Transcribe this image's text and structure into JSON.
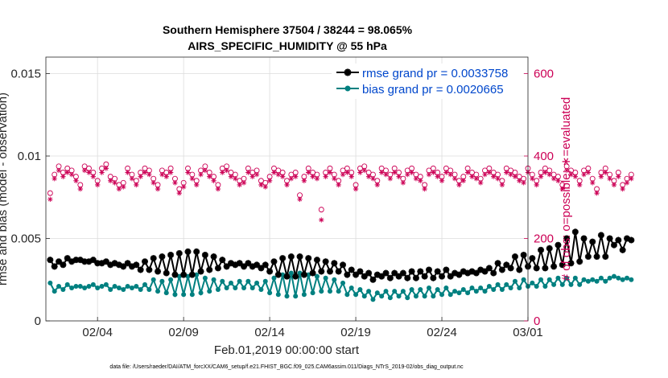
{
  "chart_data": {
    "type": "line",
    "title": "Southern Hemisphere 37504 / 38244 = 98.065%",
    "subtitle": "AIRS_SPECIFIC_HUMIDITY @ 55 hPa",
    "xlabel": "Feb.01,2019 00:00:00 start",
    "ylabel_left": "rmse and bias (model - observation)",
    "ylabel_right": "# of obs: o=possible; ∗=evaluated",
    "footer": "data file: /Users/raeder/DAI/ATM_forcXX/CAM6_setup/f.e21.FHIST_BGC.f09_025.CAM6assim.011/Diags_NTrS_2019-02/obs_diag_output.nc",
    "x_ticks": [
      {
        "label": "02/04",
        "value": 4
      },
      {
        "label": "02/09",
        "value": 9
      },
      {
        "label": "02/14",
        "value": 14
      },
      {
        "label": "02/19",
        "value": 19
      },
      {
        "label": "02/24",
        "value": 24
      },
      {
        "label": "03/01",
        "value": 29
      }
    ],
    "xlim": [
      1,
      29
    ],
    "ylim_left": [
      0,
      0.016
    ],
    "ylim_right": [
      0,
      640
    ],
    "y_ticks_left": [
      {
        "label": "0",
        "value": 0
      },
      {
        "label": "0.005",
        "value": 0.005
      },
      {
        "label": "0.01",
        "value": 0.01
      },
      {
        "label": "0.015",
        "value": 0.015
      }
    ],
    "y_ticks_right": [
      {
        "label": "0",
        "value": 0
      },
      {
        "label": "200",
        "value": 200
      },
      {
        "label": "400",
        "value": 400
      },
      {
        "label": "600",
        "value": 600
      }
    ],
    "grid": true,
    "legend_position": "top-right",
    "series_style": {
      "rmse": {
        "color": "#000000",
        "marker": "star"
      },
      "bias": {
        "color": "#008080",
        "marker": "circle"
      },
      "possible": {
        "color": "#cc0055",
        "marker": "open-circle"
      },
      "evaluated": {
        "color": "#cc0055",
        "marker": "asterisk"
      }
    },
    "legend": [
      {
        "label": "rmse grand pr = 0.0033758",
        "series": "rmse"
      },
      {
        "label": "bias grand pr = 0.0020665",
        "series": "bias"
      }
    ],
    "series": [
      {
        "name": "rmse",
        "x_start": 1.25,
        "x_step": 0.25,
        "values": [
          0.0037,
          0.0033,
          0.0036,
          0.0034,
          0.0038,
          0.0036,
          0.0037,
          0.0037,
          0.0036,
          0.0036,
          0.0037,
          0.0035,
          0.0035,
          0.0036,
          0.0034,
          0.0035,
          0.0034,
          0.0033,
          0.0035,
          0.0033,
          0.0034,
          0.0031,
          0.0036,
          0.0031,
          0.0038,
          0.003,
          0.0039,
          0.0029,
          0.004,
          0.0028,
          0.0041,
          0.0028,
          0.0042,
          0.0028,
          0.0042,
          0.003,
          0.004,
          0.0031,
          0.0039,
          0.0032,
          0.0037,
          0.0033,
          0.0035,
          0.0034,
          0.0035,
          0.0033,
          0.0035,
          0.0033,
          0.0034,
          0.0032,
          0.0034,
          0.003,
          0.0036,
          0.0028,
          0.0038,
          0.0027,
          0.0039,
          0.0027,
          0.0039,
          0.0028,
          0.0038,
          0.0029,
          0.0037,
          0.003,
          0.0036,
          0.003,
          0.0035,
          0.003,
          0.0034,
          0.0028,
          0.0031,
          0.0028,
          0.003,
          0.0027,
          0.0029,
          0.0025,
          0.0028,
          0.0027,
          0.0029,
          0.0026,
          0.0029,
          0.0027,
          0.0029,
          0.0026,
          0.003,
          0.0026,
          0.003,
          0.0027,
          0.0031,
          0.0026,
          0.003,
          0.0027,
          0.0031,
          0.0027,
          0.0029,
          0.0028,
          0.003,
          0.0029,
          0.003,
          0.0029,
          0.0031,
          0.003,
          0.0032,
          0.0029,
          0.0035,
          0.0031,
          0.0034,
          0.0032,
          0.0039,
          0.0031,
          0.004,
          0.0033,
          0.0038,
          0.0032,
          0.0043,
          0.0032,
          0.0044,
          0.0033,
          0.0046,
          0.0034,
          0.005,
          0.0035,
          0.0054,
          0.0036,
          0.005,
          0.0039,
          0.0048,
          0.0039,
          0.0052,
          0.0039,
          0.005,
          0.0046,
          0.0049,
          0.0043,
          0.005,
          0.0049
        ]
      },
      {
        "name": "bias",
        "x_start": 1.25,
        "x_step": 0.25,
        "values": [
          0.0023,
          0.0018,
          0.0021,
          0.0019,
          0.0022,
          0.002,
          0.0021,
          0.0021,
          0.002,
          0.0021,
          0.0022,
          0.002,
          0.0021,
          0.0022,
          0.0019,
          0.0021,
          0.002,
          0.0019,
          0.0021,
          0.002,
          0.0021,
          0.0019,
          0.0022,
          0.0019,
          0.0025,
          0.0018,
          0.0024,
          0.0017,
          0.0025,
          0.0016,
          0.0027,
          0.0016,
          0.0027,
          0.0016,
          0.0028,
          0.0017,
          0.0026,
          0.0018,
          0.0025,
          0.0019,
          0.0024,
          0.002,
          0.0023,
          0.002,
          0.0024,
          0.002,
          0.0024,
          0.002,
          0.0023,
          0.0019,
          0.0024,
          0.0017,
          0.0026,
          0.0016,
          0.0028,
          0.0015,
          0.0029,
          0.0015,
          0.0029,
          0.0016,
          0.0028,
          0.0017,
          0.0027,
          0.0018,
          0.0026,
          0.0018,
          0.0025,
          0.0018,
          0.0023,
          0.0016,
          0.002,
          0.0016,
          0.0019,
          0.0015,
          0.0018,
          0.0013,
          0.0017,
          0.0015,
          0.0018,
          0.0014,
          0.0018,
          0.0015,
          0.0018,
          0.0014,
          0.0019,
          0.0015,
          0.0019,
          0.0015,
          0.002,
          0.0015,
          0.0019,
          0.0016,
          0.002,
          0.0016,
          0.0018,
          0.0017,
          0.0019,
          0.0017,
          0.002,
          0.0018,
          0.002,
          0.0018,
          0.0021,
          0.0019,
          0.0022,
          0.0019,
          0.0022,
          0.002,
          0.0024,
          0.002,
          0.0025,
          0.0021,
          0.0023,
          0.0021,
          0.0025,
          0.0021,
          0.0025,
          0.0022,
          0.0026,
          0.0022,
          0.0026,
          0.0022,
          0.0026,
          0.0022,
          0.0025,
          0.0024,
          0.0025,
          0.0024,
          0.0026,
          0.0024,
          0.0026,
          0.0027,
          0.0026,
          0.0025,
          0.0026,
          0.0025
        ]
      },
      {
        "name": "possible",
        "x_start": 1.25,
        "x_step": 0.25,
        "values": [
          310,
          355,
          375,
          360,
          370,
          365,
          350,
          330,
          375,
          370,
          360,
          340,
          370,
          380,
          350,
          345,
          330,
          335,
          370,
          355,
          340,
          360,
          370,
          365,
          345,
          330,
          365,
          360,
          370,
          345,
          320,
          335,
          370,
          355,
          340,
          365,
          375,
          360,
          350,
          330,
          370,
          375,
          360,
          355,
          340,
          345,
          370,
          360,
          365,
          340,
          335,
          350,
          370,
          365,
          360,
          340,
          355,
          360,
          305,
          350,
          370,
          360,
          355,
          270,
          360,
          370,
          355,
          340,
          365,
          370,
          360,
          330,
          370,
          375,
          360,
          355,
          340,
          370,
          365,
          355,
          370,
          360,
          345,
          365,
          370,
          355,
          350,
          330,
          365,
          370,
          360,
          350,
          370,
          365,
          355,
          340,
          350,
          370,
          360,
          355,
          345,
          365,
          370,
          360,
          355,
          340,
          370,
          365,
          360,
          350,
          345,
          370,
          355,
          340,
          360,
          370,
          365,
          355,
          350,
          330,
          375,
          365,
          360,
          340,
          365,
          370,
          345,
          320,
          360,
          370,
          355,
          340,
          360,
          330,
          345,
          355
        ]
      },
      {
        "name": "evaluated",
        "x_start": 1.25,
        "x_step": 0.25,
        "values": [
          295,
          345,
          365,
          350,
          360,
          355,
          340,
          320,
          365,
          360,
          350,
          330,
          360,
          370,
          340,
          335,
          320,
          325,
          360,
          345,
          330,
          350,
          360,
          355,
          335,
          320,
          355,
          350,
          360,
          335,
          310,
          325,
          360,
          345,
          330,
          355,
          365,
          350,
          340,
          320,
          360,
          365,
          350,
          345,
          330,
          335,
          360,
          350,
          355,
          330,
          325,
          340,
          360,
          355,
          350,
          330,
          345,
          350,
          295,
          340,
          360,
          350,
          345,
          245,
          350,
          360,
          345,
          330,
          355,
          360,
          350,
          320,
          360,
          365,
          350,
          345,
          330,
          360,
          355,
          345,
          360,
          350,
          335,
          355,
          360,
          345,
          340,
          320,
          355,
          360,
          350,
          340,
          360,
          355,
          345,
          330,
          340,
          360,
          350,
          345,
          335,
          355,
          360,
          350,
          345,
          330,
          360,
          355,
          350,
          340,
          335,
          360,
          345,
          330,
          350,
          360,
          355,
          345,
          340,
          320,
          365,
          355,
          350,
          330,
          355,
          360,
          335,
          310,
          350,
          360,
          345,
          330,
          350,
          320,
          335,
          345
        ]
      }
    ]
  }
}
